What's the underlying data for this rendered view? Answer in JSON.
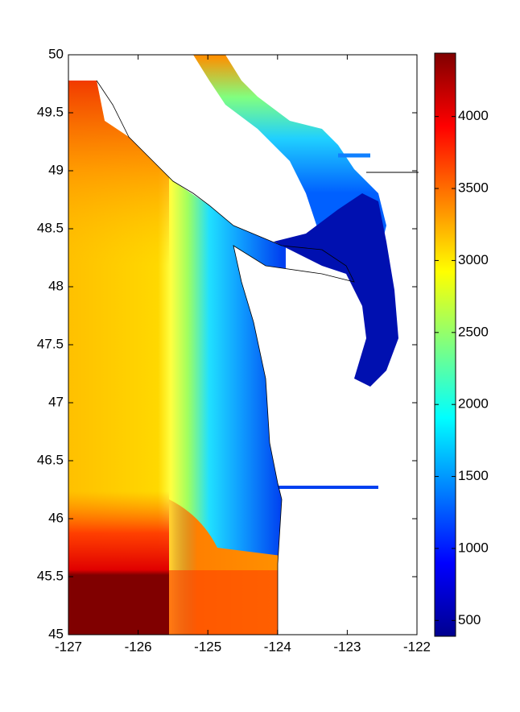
{
  "chart_data": {
    "type": "map",
    "xlim": [
      -127,
      -122
    ],
    "xticks": [
      -127,
      -126,
      -125,
      -124,
      -123,
      -122
    ],
    "ylim": [
      45,
      50
    ],
    "yticks": [
      45,
      45.5,
      46,
      46.5,
      47,
      47.5,
      48,
      48.5,
      49,
      49.5,
      50
    ],
    "colorbar": {
      "colormap": "jet",
      "clim": [
        390,
        4440
      ],
      "ticks": [
        500,
        1000,
        1500,
        2000,
        2500,
        3000,
        3500,
        4000
      ]
    }
  }
}
